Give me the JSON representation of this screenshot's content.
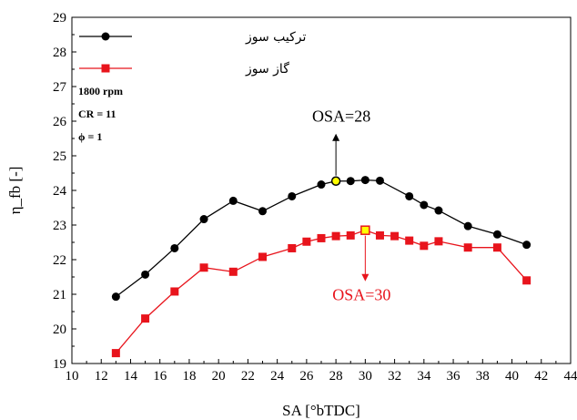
{
  "chart_data": {
    "type": "line",
    "xlabel": "SA [°bTDC]",
    "ylabel": "η_fb [-]",
    "xlim": [
      10,
      44
    ],
    "ylim": [
      19,
      29
    ],
    "xticks": [
      10,
      12,
      14,
      16,
      18,
      20,
      22,
      24,
      26,
      28,
      30,
      32,
      34,
      36,
      38,
      40,
      42,
      44
    ],
    "yticks": [
      19,
      20,
      21,
      22,
      23,
      24,
      25,
      26,
      27,
      28,
      29
    ],
    "grid": false,
    "legend_position": "top-left",
    "conditions": [
      "1800 rpm",
      "CR = 11",
      "ϕ = 1"
    ],
    "series": [
      {
        "name": "ترکیب سوز",
        "color": "#000000",
        "marker": "circle",
        "x": [
          13,
          15,
          17,
          19,
          21,
          23,
          25,
          27,
          28,
          29,
          30,
          31,
          33,
          34,
          35,
          37,
          39,
          41
        ],
        "y": [
          20.93,
          21.57,
          22.33,
          23.17,
          23.7,
          23.4,
          23.83,
          24.17,
          24.27,
          24.27,
          24.3,
          24.28,
          23.83,
          23.58,
          23.42,
          22.97,
          22.73,
          22.43
        ]
      },
      {
        "name": "گاز سوز",
        "color": "#e8141c",
        "marker": "square",
        "x": [
          13,
          15,
          17,
          19,
          21,
          23,
          25,
          26,
          27,
          28,
          29,
          30,
          31,
          32,
          33,
          34,
          35,
          37,
          39,
          41
        ],
        "y": [
          19.3,
          20.3,
          21.08,
          21.77,
          21.65,
          22.08,
          22.33,
          22.52,
          22.62,
          22.68,
          22.7,
          22.85,
          22.7,
          22.68,
          22.55,
          22.4,
          22.53,
          22.35,
          22.35,
          21.4
        ]
      }
    ],
    "annotations": [
      {
        "text": "OSA=28",
        "x": 28,
        "y": 24.27,
        "color": "#000000",
        "direction": "up"
      },
      {
        "text": "OSA=30",
        "x": 30,
        "y": 22.85,
        "color": "#e8141c",
        "direction": "down"
      }
    ]
  }
}
